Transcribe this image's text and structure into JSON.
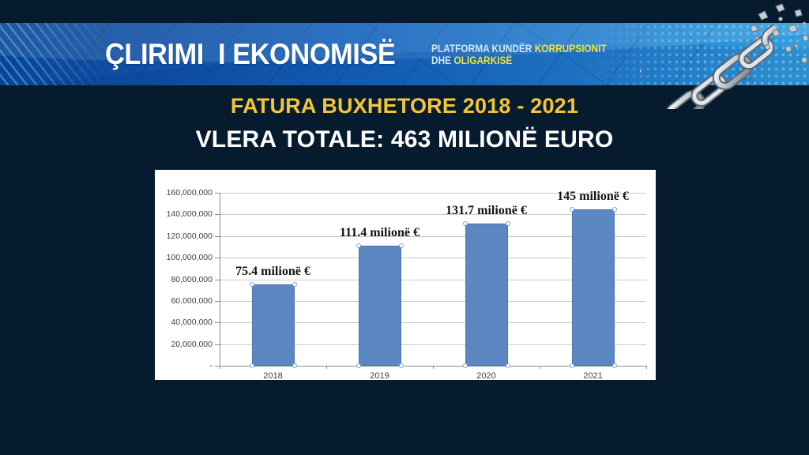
{
  "header": {
    "brand": "ÇLIRIMI  I EKONOMISË",
    "tagline_l1_white": "PLATFORMA KUNDËR",
    "tagline_l1_yellow": "KORRUPSIONIT",
    "tagline_l2_white": "DHE",
    "tagline_l2_yellow": "OLIGARKISË"
  },
  "titles": {
    "main": "FATURA BUXHETORE 2018 - 2021",
    "subtitle": "VLERA TOTALE: 463 MILIONË EURO"
  },
  "chart_data": {
    "type": "bar",
    "categories": [
      "2018",
      "2019",
      "2020",
      "2021"
    ],
    "values": [
      75400000,
      111400000,
      131700000,
      145000000
    ],
    "data_labels": [
      "75.4 milionë €",
      "111.4 milionë €",
      "131.7 milionë €",
      "145 milionë €"
    ],
    "y_ticks": [
      "160,000,000",
      "140,000,000",
      "120,000,000",
      "100,000,000",
      "80,000,000",
      "60,000,000",
      "40,000,000",
      "20,000,000",
      "-"
    ],
    "ylim": [
      0,
      160000000
    ],
    "grid": true,
    "legend": "none",
    "title": "",
    "xlabel": "",
    "ylabel": ""
  },
  "colors": {
    "background": "#071b2e",
    "header_blue_left": "#0c4394",
    "header_blue_right": "#35a0de",
    "header_yellow": "#efe23a",
    "title_yellow": "#f2c53a",
    "bar_fill": "#5b87c2",
    "bar_border": "#4a76ad",
    "gridline": "#c9c9c9"
  },
  "icons": {
    "broken_chain": "broken-chain-graphic"
  }
}
